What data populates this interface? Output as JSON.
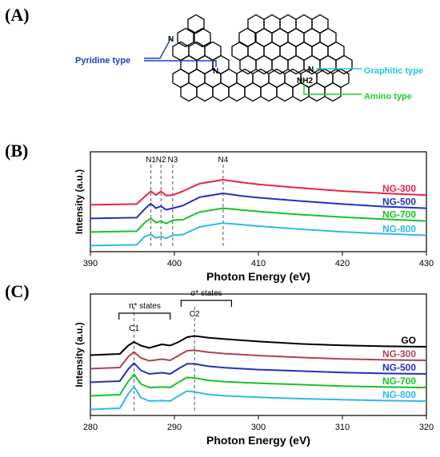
{
  "panels": {
    "a": "(A)",
    "b": "(B)",
    "c": "(C)"
  },
  "structure": {
    "labels": [
      {
        "text": "Pyridine type",
        "color": "#1f3fbf"
      },
      {
        "text": "Graphitic type",
        "color": "#1fc9d9"
      },
      {
        "text": "Amino type",
        "color": "#1fcf2f"
      }
    ],
    "atoms": {
      "n": "N",
      "nh2": "NH2"
    }
  },
  "chart_data": [
    {
      "type": "line",
      "panel": "B",
      "xlabel": "Photon Energy (eV)",
      "ylabel": "Intensity (a.u.)",
      "xlim": [
        390,
        430
      ],
      "xticks": [
        390,
        400,
        410,
        420,
        430
      ],
      "annotations": [
        {
          "text": "N1",
          "x": 397.2
        },
        {
          "text": "N2",
          "x": 398.4
        },
        {
          "text": "N3",
          "x": 399.8
        },
        {
          "text": "N4",
          "x": 405.8
        }
      ],
      "series": [
        {
          "name": "NG-300",
          "color": "#e8234a",
          "offset": 3,
          "x": [
            390,
            395.5,
            396.5,
            397.2,
            397.8,
            398.4,
            399.0,
            399.8,
            401,
            403,
            405.8,
            408,
            410,
            415,
            420,
            425,
            430
          ],
          "y": [
            0.02,
            0.05,
            0.35,
            0.55,
            0.4,
            0.55,
            0.38,
            0.4,
            0.55,
            0.85,
            1.0,
            0.9,
            0.82,
            0.68,
            0.56,
            0.47,
            0.4
          ]
        },
        {
          "name": "NG-500",
          "color": "#2232b8",
          "offset": 2,
          "x": [
            390,
            395.5,
            396.5,
            397.2,
            397.8,
            398.4,
            399.0,
            399.8,
            401,
            403,
            405.8,
            408,
            410,
            415,
            420,
            425,
            430
          ],
          "y": [
            0.02,
            0.05,
            0.4,
            0.6,
            0.42,
            0.5,
            0.36,
            0.42,
            0.52,
            0.85,
            1.0,
            0.9,
            0.83,
            0.7,
            0.58,
            0.48,
            0.42
          ]
        },
        {
          "name": "NG-700",
          "color": "#17c227",
          "offset": 1,
          "x": [
            390,
            395.5,
            396.5,
            397.2,
            397.8,
            398.4,
            399.0,
            399.8,
            401,
            403,
            405.8,
            408,
            410,
            415,
            420,
            425,
            430
          ],
          "y": [
            0.02,
            0.05,
            0.4,
            0.55,
            0.38,
            0.45,
            0.35,
            0.48,
            0.5,
            0.8,
            0.95,
            0.88,
            0.82,
            0.7,
            0.6,
            0.52,
            0.45
          ]
        },
        {
          "name": "NG-800",
          "color": "#2fb8e8",
          "offset": 0,
          "x": [
            390,
            395.5,
            396.5,
            397.2,
            397.8,
            398.4,
            399.0,
            399.8,
            401,
            403,
            405.8,
            408,
            410,
            415,
            420,
            425,
            430
          ],
          "y": [
            0.02,
            0.05,
            0.38,
            0.45,
            0.32,
            0.38,
            0.3,
            0.42,
            0.45,
            0.75,
            0.9,
            0.84,
            0.78,
            0.66,
            0.56,
            0.48,
            0.42
          ]
        }
      ]
    },
    {
      "type": "line",
      "panel": "C",
      "xlabel": "Photon Energy (eV)",
      "ylabel": "Intensity (a.u.)",
      "xlim": [
        280,
        320
      ],
      "xticks": [
        280,
        290,
        300,
        310,
        320
      ],
      "annotations": [
        {
          "text": "π* states"
        },
        {
          "text": "σ* states"
        },
        {
          "text": "C1",
          "x": 285.2
        },
        {
          "text": "C2",
          "x": 292.4
        }
      ],
      "series": [
        {
          "name": "GO",
          "color": "#000000",
          "offset": 4,
          "x": [
            280,
            283.5,
            284.5,
            285.2,
            286,
            287,
            288.5,
            289.5,
            290.5,
            291.5,
            292.4,
            294,
            296,
            300,
            305,
            310,
            315,
            320
          ],
          "y": [
            0.05,
            0.1,
            0.45,
            0.6,
            0.45,
            0.35,
            0.5,
            0.45,
            0.6,
            0.8,
            0.85,
            0.78,
            0.72,
            0.62,
            0.52,
            0.46,
            0.42,
            0.4
          ]
        },
        {
          "name": "NG-300",
          "color": "#b04150",
          "offset": 3,
          "x": [
            280,
            283.5,
            284.5,
            285.2,
            286,
            287,
            288.5,
            289.5,
            290.5,
            291.5,
            292.4,
            294,
            296,
            300,
            305,
            310,
            315,
            320
          ],
          "y": [
            0.05,
            0.1,
            0.55,
            0.75,
            0.5,
            0.38,
            0.45,
            0.4,
            0.6,
            0.8,
            0.82,
            0.74,
            0.68,
            0.6,
            0.52,
            0.46,
            0.42,
            0.4
          ]
        },
        {
          "name": "NG-500",
          "color": "#2232b8",
          "offset": 2,
          "x": [
            280,
            283.5,
            284.5,
            285.2,
            286,
            287,
            288.5,
            289.5,
            290.5,
            291.5,
            292.4,
            294,
            296,
            300,
            305,
            310,
            315,
            320
          ],
          "y": [
            0.05,
            0.1,
            0.6,
            0.85,
            0.55,
            0.4,
            0.45,
            0.4,
            0.62,
            0.82,
            0.82,
            0.72,
            0.66,
            0.58,
            0.52,
            0.46,
            0.42,
            0.4
          ]
        },
        {
          "name": "NG-700",
          "color": "#17c227",
          "offset": 1,
          "x": [
            280,
            283.5,
            284.5,
            285.2,
            286,
            287,
            288.5,
            289.5,
            290.5,
            291.5,
            292.4,
            294,
            296,
            300,
            305,
            310,
            315,
            320
          ],
          "y": [
            0.05,
            0.1,
            0.65,
            0.95,
            0.55,
            0.4,
            0.42,
            0.4,
            0.62,
            0.82,
            0.8,
            0.7,
            0.64,
            0.58,
            0.52,
            0.46,
            0.42,
            0.4
          ]
        },
        {
          "name": "NG-800",
          "color": "#2fb8e8",
          "offset": 0,
          "x": [
            280,
            283.5,
            284.5,
            285.2,
            286,
            287,
            288.5,
            289.5,
            290.5,
            291.5,
            292.4,
            294,
            296,
            300,
            305,
            310,
            315,
            320
          ],
          "y": [
            0.05,
            0.1,
            0.7,
            1.0,
            0.55,
            0.4,
            0.42,
            0.4,
            0.62,
            0.82,
            0.78,
            0.68,
            0.62,
            0.56,
            0.5,
            0.46,
            0.42,
            0.4
          ]
        }
      ]
    }
  ]
}
